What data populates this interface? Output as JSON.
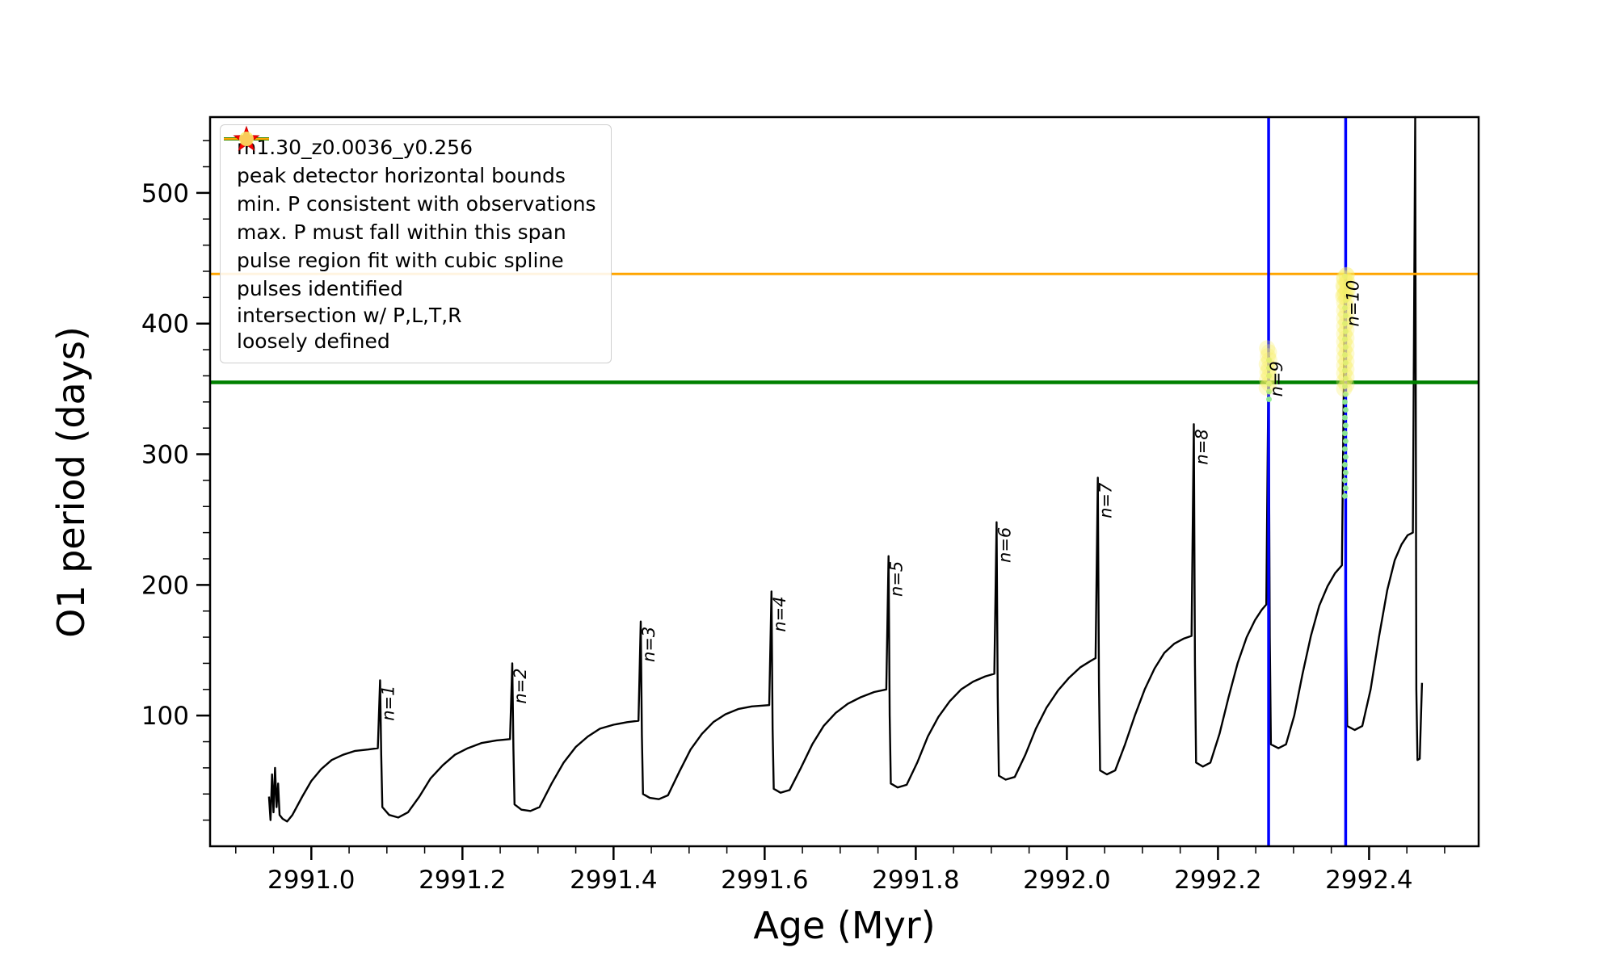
{
  "figure": {
    "background": "#ffffff"
  },
  "chart_data": {
    "type": "line",
    "title": "",
    "xlabel": "Age (Myr)",
    "ylabel": "O1 period (days)",
    "xlim": [
      2990.866,
      2992.545
    ],
    "ylim": [
      0,
      558
    ],
    "xticks": [
      2991.0,
      2991.2,
      2991.4,
      2991.6,
      2991.8,
      2992.0,
      2992.2,
      2992.4
    ],
    "xtick_labels": [
      "2991.0",
      "2991.2",
      "2991.4",
      "2991.6",
      "2991.8",
      "2992.0",
      "2992.2",
      "2992.4"
    ],
    "yticks": [
      100,
      200,
      300,
      400,
      500
    ],
    "ytick_labels": [
      "100",
      "200",
      "300",
      "400",
      "500"
    ],
    "x_minor_step": 0.05,
    "y_minor_step": 20,
    "grid": false,
    "legend_position": "upper-left",
    "series": [
      {
        "name": "m1.30_z0.0036_y0.256",
        "type": "line",
        "color": "#000000",
        "line_width": 2.4,
        "points": [
          [
            2990.944,
            38
          ],
          [
            2990.946,
            20
          ],
          [
            2990.948,
            55
          ],
          [
            2990.95,
            26
          ],
          [
            2990.952,
            60
          ],
          [
            2990.954,
            30
          ],
          [
            2990.956,
            48
          ],
          [
            2990.958,
            24
          ],
          [
            2990.962,
            21
          ],
          [
            2990.968,
            19
          ],
          [
            2990.975,
            24
          ],
          [
            2990.988,
            38
          ],
          [
            2991.0,
            50
          ],
          [
            2991.013,
            59
          ],
          [
            2991.027,
            66
          ],
          [
            2991.042,
            70
          ],
          [
            2991.058,
            73
          ],
          [
            2991.075,
            74
          ],
          [
            2991.088,
            75
          ],
          [
            2991.091,
            127
          ],
          [
            2991.0925,
            70
          ],
          [
            2991.094,
            30
          ],
          [
            2991.103,
            24
          ],
          [
            2991.115,
            22
          ],
          [
            2991.128,
            26
          ],
          [
            2991.143,
            38
          ],
          [
            2991.158,
            52
          ],
          [
            2991.174,
            62
          ],
          [
            2991.19,
            70
          ],
          [
            2991.207,
            75
          ],
          [
            2991.225,
            79
          ],
          [
            2991.245,
            81
          ],
          [
            2991.263,
            82
          ],
          [
            2991.266,
            140
          ],
          [
            2991.2675,
            75
          ],
          [
            2991.269,
            32
          ],
          [
            2991.278,
            28
          ],
          [
            2991.29,
            27
          ],
          [
            2991.302,
            30
          ],
          [
            2991.318,
            48
          ],
          [
            2991.334,
            64
          ],
          [
            2991.35,
            76
          ],
          [
            2991.366,
            84
          ],
          [
            2991.382,
            90
          ],
          [
            2991.4,
            93
          ],
          [
            2991.418,
            95
          ],
          [
            2991.433,
            96
          ],
          [
            2991.436,
            172
          ],
          [
            2991.4375,
            85
          ],
          [
            2991.439,
            40
          ],
          [
            2991.448,
            37
          ],
          [
            2991.46,
            36
          ],
          [
            2991.472,
            39
          ],
          [
            2991.487,
            57
          ],
          [
            2991.502,
            74
          ],
          [
            2991.517,
            86
          ],
          [
            2991.532,
            95
          ],
          [
            2991.548,
            101
          ],
          [
            2991.565,
            105
          ],
          [
            2991.583,
            107
          ],
          [
            2991.606,
            108
          ],
          [
            2991.609,
            195
          ],
          [
            2991.6105,
            90
          ],
          [
            2991.612,
            44
          ],
          [
            2991.621,
            41
          ],
          [
            2991.633,
            43
          ],
          [
            2991.648,
            60
          ],
          [
            2991.663,
            78
          ],
          [
            2991.678,
            92
          ],
          [
            2991.694,
            102
          ],
          [
            2991.71,
            109
          ],
          [
            2991.727,
            114
          ],
          [
            2991.745,
            118
          ],
          [
            2991.761,
            120
          ],
          [
            2991.764,
            222
          ],
          [
            2991.7655,
            100
          ],
          [
            2991.767,
            48
          ],
          [
            2991.776,
            45
          ],
          [
            2991.788,
            47
          ],
          [
            2991.802,
            64
          ],
          [
            2991.816,
            84
          ],
          [
            2991.83,
            99
          ],
          [
            2991.845,
            111
          ],
          [
            2991.86,
            120
          ],
          [
            2991.876,
            126
          ],
          [
            2991.892,
            130
          ],
          [
            2991.904,
            132
          ],
          [
            2991.907,
            248
          ],
          [
            2991.9085,
            115
          ],
          [
            2991.91,
            54
          ],
          [
            2991.919,
            51
          ],
          [
            2991.931,
            53
          ],
          [
            2991.945,
            70
          ],
          [
            2991.959,
            90
          ],
          [
            2991.973,
            106
          ],
          [
            2991.988,
            119
          ],
          [
            2992.003,
            129
          ],
          [
            2992.018,
            137
          ],
          [
            2992.032,
            142
          ],
          [
            2992.038,
            144
          ],
          [
            2992.041,
            282
          ],
          [
            2992.0425,
            125
          ],
          [
            2992.044,
            58
          ],
          [
            2992.053,
            55
          ],
          [
            2992.064,
            58
          ],
          [
            2992.077,
            78
          ],
          [
            2992.09,
            100
          ],
          [
            2992.103,
            120
          ],
          [
            2992.116,
            136
          ],
          [
            2992.129,
            148
          ],
          [
            2992.142,
            155
          ],
          [
            2992.155,
            159
          ],
          [
            2992.165,
            161
          ],
          [
            2992.168,
            323
          ],
          [
            2992.1695,
            140
          ],
          [
            2992.171,
            64
          ],
          [
            2992.18,
            61
          ],
          [
            2992.19,
            64
          ],
          [
            2992.202,
            86
          ],
          [
            2992.214,
            114
          ],
          [
            2992.226,
            140
          ],
          [
            2992.238,
            160
          ],
          [
            2992.249,
            173
          ],
          [
            2992.258,
            181
          ],
          [
            2992.264,
            185
          ],
          [
            2992.267,
            375
          ],
          [
            2992.2685,
            160
          ],
          [
            2992.27,
            78
          ],
          [
            2992.28,
            75
          ],
          [
            2992.29,
            78
          ],
          [
            2992.301,
            100
          ],
          [
            2992.312,
            132
          ],
          [
            2992.323,
            161
          ],
          [
            2992.334,
            184
          ],
          [
            2992.345,
            199
          ],
          [
            2992.355,
            209
          ],
          [
            2992.364,
            215
          ],
          [
            2992.368,
            437
          ],
          [
            2992.3695,
            180
          ],
          [
            2992.371,
            92
          ],
          [
            2992.381,
            89
          ],
          [
            2992.391,
            92
          ],
          [
            2992.402,
            120
          ],
          [
            2992.413,
            160
          ],
          [
            2992.424,
            196
          ],
          [
            2992.434,
            219
          ],
          [
            2992.443,
            231
          ],
          [
            2992.451,
            238
          ],
          [
            2992.458,
            240
          ],
          [
            2992.461,
            558
          ],
          [
            2992.4625,
            120
          ],
          [
            2992.464,
            66
          ],
          [
            2992.467,
            67
          ],
          [
            2992.47,
            125
          ]
        ]
      }
    ],
    "vlines": {
      "label": "peak detector horizontal bounds",
      "color": "#0000ff",
      "width": 3.5,
      "x": [
        2992.267,
        2992.369
      ]
    },
    "hlines": [
      {
        "label": "min. P consistent with observations",
        "color": "#008000",
        "width": 4.5,
        "y": 355
      },
      {
        "label": "max. P must fall within this span",
        "color": "#ffa500",
        "width": 3,
        "y": 438
      }
    ],
    "scatter": [
      {
        "name": "pulse region fit with cubic spline",
        "color": "#90ee90",
        "radius": 3.5,
        "opacity": 0.95,
        "points": [
          [
            2992.2675,
            342
          ],
          [
            2992.2675,
            348
          ],
          [
            2992.2675,
            354
          ],
          [
            2992.2675,
            360
          ],
          [
            2992.2675,
            366
          ],
          [
            2992.2675,
            372
          ],
          [
            2992.368,
            268
          ],
          [
            2992.369,
            274
          ],
          [
            2992.368,
            280
          ],
          [
            2992.369,
            286
          ],
          [
            2992.368,
            292
          ],
          [
            2992.369,
            298
          ],
          [
            2992.368,
            304
          ],
          [
            2992.369,
            310
          ],
          [
            2992.368,
            316
          ],
          [
            2992.369,
            322
          ],
          [
            2992.368,
            328
          ],
          [
            2992.369,
            334
          ],
          [
            2992.368,
            340
          ],
          [
            2992.369,
            346
          ],
          [
            2992.368,
            352
          ],
          [
            2992.369,
            358
          ],
          [
            2992.368,
            364
          ],
          [
            2992.369,
            370
          ],
          [
            2992.368,
            376
          ],
          [
            2992.369,
            382
          ],
          [
            2992.368,
            388
          ],
          [
            2992.369,
            394
          ],
          [
            2992.368,
            400
          ],
          [
            2992.369,
            406
          ],
          [
            2992.368,
            412
          ],
          [
            2992.369,
            418
          ],
          [
            2992.368,
            424
          ],
          [
            2992.369,
            430
          ],
          [
            2992.368,
            436
          ]
        ]
      },
      {
        "name": "intersection w/ P,L,T,R loosely defined",
        "color": "#f9f06b",
        "radius": 10,
        "opacity": 0.32,
        "points": [
          [
            2992.2645,
            351
          ],
          [
            2992.2675,
            354
          ],
          [
            2992.265,
            357
          ],
          [
            2992.268,
            360
          ],
          [
            2992.2655,
            363
          ],
          [
            2992.2675,
            366
          ],
          [
            2992.2645,
            369
          ],
          [
            2992.268,
            372
          ],
          [
            2992.266,
            375
          ],
          [
            2992.2675,
            378
          ],
          [
            2992.265,
            381
          ],
          [
            2992.367,
            350
          ],
          [
            2992.37,
            353
          ],
          [
            2992.367,
            356
          ],
          [
            2992.37,
            359
          ],
          [
            2992.367,
            362
          ],
          [
            2992.37,
            365
          ],
          [
            2992.367,
            368
          ],
          [
            2992.37,
            371
          ],
          [
            2992.367,
            374
          ],
          [
            2992.37,
            377
          ],
          [
            2992.367,
            380
          ],
          [
            2992.37,
            383
          ],
          [
            2992.367,
            386
          ],
          [
            2992.37,
            389
          ],
          [
            2992.367,
            392
          ],
          [
            2992.37,
            395
          ],
          [
            2992.367,
            398
          ],
          [
            2992.37,
            401
          ],
          [
            2992.367,
            404
          ],
          [
            2992.37,
            407
          ],
          [
            2992.367,
            410
          ],
          [
            2992.37,
            413
          ],
          [
            2992.367,
            416
          ],
          [
            2992.37,
            419
          ],
          [
            2992.367,
            422
          ],
          [
            2992.37,
            425
          ],
          [
            2992.367,
            428
          ],
          [
            2992.37,
            431
          ],
          [
            2992.367,
            434
          ],
          [
            2992.37,
            437
          ],
          [
            2992.3655,
            421
          ],
          [
            2992.3715,
            425
          ],
          [
            2992.366,
            429
          ],
          [
            2992.371,
            432
          ],
          [
            2992.367,
            435
          ],
          [
            2992.3705,
            437
          ],
          [
            2992.3685,
            423
          ]
        ]
      }
    ],
    "peak_labels": [
      {
        "text": "n=1",
        "x": 2991.091,
        "y": 127
      },
      {
        "text": "n=2",
        "x": 2991.266,
        "y": 140
      },
      {
        "text": "n=3",
        "x": 2991.436,
        "y": 172
      },
      {
        "text": "n=4",
        "x": 2991.609,
        "y": 195
      },
      {
        "text": "n=5",
        "x": 2991.764,
        "y": 222
      },
      {
        "text": "n=6",
        "x": 2991.907,
        "y": 248
      },
      {
        "text": "n=7",
        "x": 2992.041,
        "y": 282
      },
      {
        "text": "n=8",
        "x": 2992.168,
        "y": 323
      },
      {
        "text": "n=9",
        "x": 2992.267,
        "y": 375
      },
      {
        "text": "n=10",
        "x": 2992.368,
        "y": 437
      }
    ]
  },
  "legend": {
    "items": [
      {
        "label": "m1.30_z0.0036_y0.256",
        "swatch": "line-marker",
        "color": "#000000",
        "lw": 1.8
      },
      {
        "label": "peak detector horizontal bounds",
        "swatch": "line",
        "color": "#0000ff",
        "lw": 4
      },
      {
        "label": "min. P consistent with observations",
        "swatch": "line",
        "color": "#008000",
        "lw": 4
      },
      {
        "label": "max. P must fall within this span",
        "swatch": "line",
        "color": "#ffa500",
        "lw": 2.5
      },
      {
        "label": "pulse region fit with cubic spline",
        "swatch": "dot",
        "color": "#90ee90",
        "size": 5
      },
      {
        "label": "pulses identified",
        "swatch": "star",
        "color": "#ff0000"
      },
      {
        "label": "intersection w/ P,L,T,R\nloosely defined",
        "swatch": "dot",
        "color": "#f9f06b",
        "size": 9,
        "opacity": 0.85
      }
    ]
  }
}
